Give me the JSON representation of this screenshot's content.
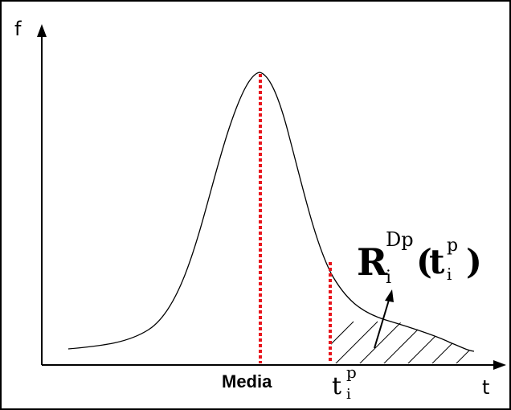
{
  "diagram": {
    "y_axis_label": "f",
    "x_axis_label": "t",
    "mean_label": "Media",
    "threshold_label": {
      "base": "t",
      "subscript": "i",
      "superscript": "p"
    },
    "area_label": {
      "base": "R",
      "subscript": "i",
      "superscript": "Dp",
      "open_paren": "(",
      "arg_base": "t",
      "arg_subscript": "i",
      "arg_superscript": "p",
      "close_paren": ")"
    },
    "colors": {
      "line": "#000000",
      "dashed_marker": "#e8141b",
      "frame": "#000000"
    }
  }
}
